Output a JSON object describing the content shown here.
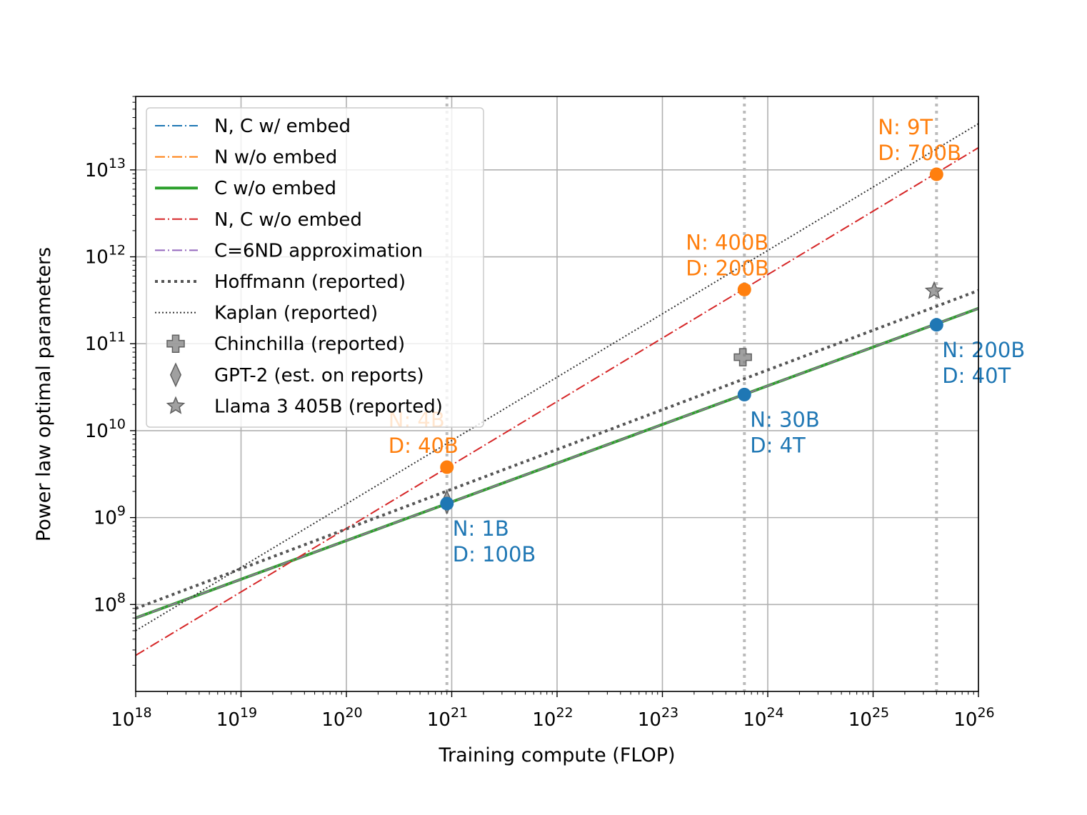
{
  "chart_data": {
    "type": "line",
    "title": "",
    "xlabel": "Training compute (FLOP)",
    "ylabel": "Power law optimal parameters",
    "xscale": "log",
    "yscale": "log",
    "xlim": [
      1e+18,
      1e+26
    ],
    "ylim": [
      10000000.0,
      70000000000000.0
    ],
    "grid": true,
    "legend_position": "upper-left",
    "x_ticks": [
      {
        "exp": 18,
        "label": "10",
        "sup": "18"
      },
      {
        "exp": 19,
        "label": "10",
        "sup": "19"
      },
      {
        "exp": 20,
        "label": "10",
        "sup": "20"
      },
      {
        "exp": 21,
        "label": "10",
        "sup": "21"
      },
      {
        "exp": 22,
        "label": "10",
        "sup": "22"
      },
      {
        "exp": 23,
        "label": "10",
        "sup": "23"
      },
      {
        "exp": 24,
        "label": "10",
        "sup": "24"
      },
      {
        "exp": 25,
        "label": "10",
        "sup": "25"
      },
      {
        "exp": 26,
        "label": "10",
        "sup": "26"
      }
    ],
    "y_ticks": [
      {
        "exp": 8,
        "label": "10",
        "sup": "8"
      },
      {
        "exp": 9,
        "label": "10",
        "sup": "9"
      },
      {
        "exp": 10,
        "label": "10",
        "sup": "10"
      },
      {
        "exp": 11,
        "label": "10",
        "sup": "11"
      },
      {
        "exp": 12,
        "label": "10",
        "sup": "12"
      },
      {
        "exp": 13,
        "label": "10",
        "sup": "13"
      }
    ],
    "vertical_markers": [
      9e+20,
      6e+23,
      4e+25
    ],
    "series": [
      {
        "name": "N, C w/ embed",
        "color": "#1f77b4",
        "style": "dashdot",
        "width": 2,
        "x": [
          1e+18,
          1e+26
        ],
        "y": [
          70000000.0,
          255000000000.0
        ]
      },
      {
        "name": "N w/o embed",
        "color": "#ff7f0e",
        "style": "dashdot",
        "width": 2,
        "x": [
          1e+18,
          1e+26
        ],
        "y": [
          70000000.0,
          255000000000.0
        ]
      },
      {
        "name": "C w/o embed",
        "color": "#2ca02c",
        "style": "solid",
        "width": 4,
        "x": [
          1e+18,
          1e+26
        ],
        "y": [
          70000000.0,
          255000000000.0
        ]
      },
      {
        "name": "N, C w/o embed",
        "color": "#d62728",
        "style": "dashdot",
        "width": 2,
        "x": [
          1e+18,
          1e+26
        ],
        "y": [
          26000000.0,
          18000000000000.0
        ]
      },
      {
        "name": "C=6ND approximation",
        "color": "#9467bd",
        "style": "dashdot",
        "width": 2,
        "x": [
          1e+18,
          1e+26
        ],
        "y": [
          70000000.0,
          255000000000.0
        ]
      },
      {
        "name": "Hoffmann (reported)",
        "color": "#555555",
        "style": "dotted-thick",
        "width": 4,
        "x": [
          1e+18,
          1e+26
        ],
        "y": [
          90000000.0,
          410000000000.0
        ]
      },
      {
        "name": "Kaplan (reported)",
        "color": "#333333",
        "style": "dotted",
        "width": 2,
        "x": [
          1e+18,
          1e+26
        ],
        "y": [
          50000000.0,
          34000000000000.0
        ]
      },
      {
        "name": "Chinchilla (reported)",
        "color": "#808080",
        "style": "marker-plus",
        "x": [
          5.8e+23
        ],
        "y": [
          70000000000.0
        ]
      },
      {
        "name": "GPT-2 (est. on reports)",
        "color": "#808080",
        "style": "marker-diamond",
        "x": [
          9e+20
        ],
        "y": [
          1500000000.0
        ]
      },
      {
        "name": "Llama 3 405B (reported)",
        "color": "#808080",
        "style": "marker-star",
        "x": [
          3.8e+25
        ],
        "y": [
          405000000000.0
        ]
      }
    ],
    "points": [
      {
        "x": 9e+20,
        "y": 3800000000.0,
        "color": "#ff7f0e"
      },
      {
        "x": 6e+23,
        "y": 420000000000.0,
        "color": "#ff7f0e"
      },
      {
        "x": 4e+25,
        "y": 8900000000000.0,
        "color": "#ff7f0e"
      },
      {
        "x": 9e+20,
        "y": 1450000000.0,
        "color": "#1f77b4"
      },
      {
        "x": 6e+23,
        "y": 26000000000.0,
        "color": "#1f77b4"
      },
      {
        "x": 4e+25,
        "y": 165000000000.0,
        "color": "#1f77b4"
      }
    ],
    "annotations": [
      {
        "line1": "N: 4B",
        "line2": "D: 40B",
        "color": "#ff7f0e",
        "x": 9e+20,
        "y": 3800000000.0,
        "anchor": "above-left"
      },
      {
        "line1": "N: 400B",
        "line2": "D: 200B",
        "color": "#ff7f0e",
        "x": 6e+23,
        "y": 420000000000.0,
        "anchor": "above-left"
      },
      {
        "line1": "N: 9T",
        "line2": "D: 700B",
        "color": "#ff7f0e",
        "x": 4e+25,
        "y": 8900000000000.0,
        "anchor": "above-left"
      },
      {
        "line1": "N: 1B",
        "line2": "D: 100B",
        "color": "#1f77b4",
        "x": 9e+20,
        "y": 1450000000.0,
        "anchor": "below-right"
      },
      {
        "line1": "N: 30B",
        "line2": "D: 4T",
        "color": "#1f77b4",
        "x": 6e+23,
        "y": 26000000000.0,
        "anchor": "below-right"
      },
      {
        "line1": "N: 200B",
        "line2": "D: 40T",
        "color": "#1f77b4",
        "x": 4e+25,
        "y": 165000000000.0,
        "anchor": "below-right"
      }
    ]
  }
}
